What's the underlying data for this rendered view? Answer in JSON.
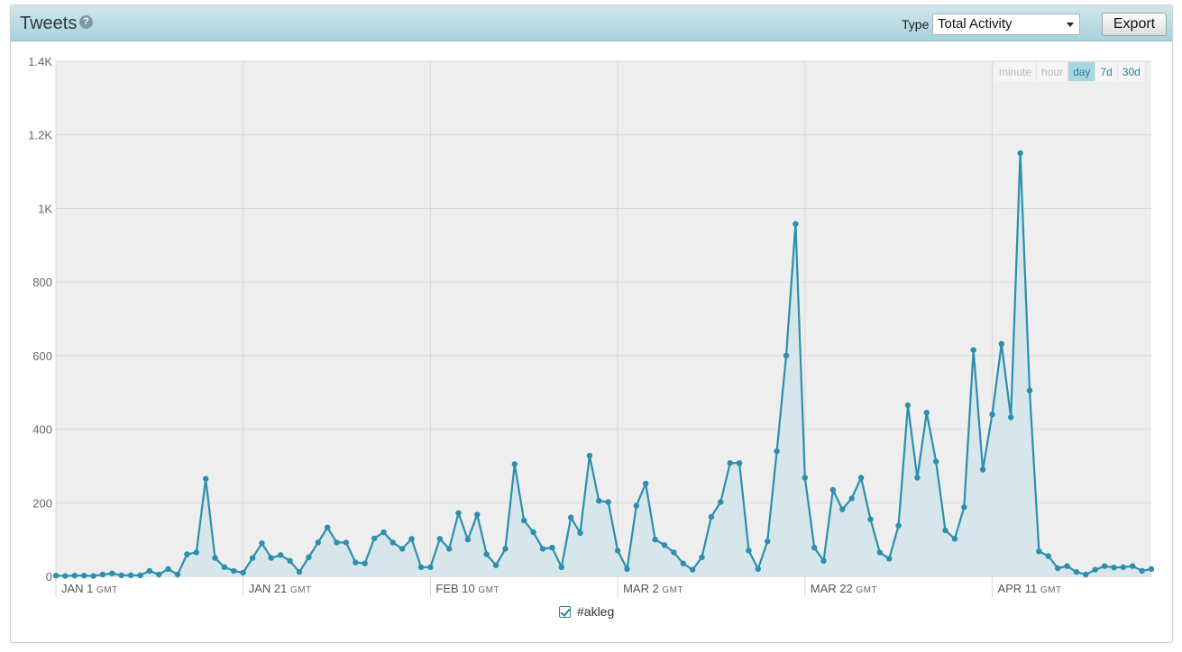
{
  "header": {
    "title": "Tweets",
    "help_icon": "help-icon",
    "type_label": "Type",
    "type_value": "Total Activity",
    "export_label": "Export"
  },
  "range_buttons": [
    {
      "label": "minute",
      "state": "disabled"
    },
    {
      "label": "hour",
      "state": "disabled"
    },
    {
      "label": "day",
      "state": "active"
    },
    {
      "label": "7d",
      "state": "enabled"
    },
    {
      "label": "30d",
      "state": "enabled"
    }
  ],
  "legend": {
    "series_name": "#akleg",
    "checked": true
  },
  "colors": {
    "line": "#2c8fae",
    "fill": "#d6e6ea",
    "plot_background": "#eeeeee",
    "grid": "#d9d9d9"
  },
  "chart_data": {
    "type": "area",
    "title": "",
    "xlabel": "",
    "ylabel": "",
    "ylim": [
      0,
      1400
    ],
    "y_ticks": [
      {
        "value": 0,
        "label": "0"
      },
      {
        "value": 200,
        "label": "200"
      },
      {
        "value": 400,
        "label": "400"
      },
      {
        "value": 600,
        "label": "600"
      },
      {
        "value": 800,
        "label": "800"
      },
      {
        "value": 1000,
        "label": "1K"
      },
      {
        "value": 1200,
        "label": "1.2K"
      },
      {
        "value": 1400,
        "label": "1.4K"
      }
    ],
    "x_ticks": [
      {
        "day_index": 0,
        "label": "JAN 1",
        "unit": "GMT"
      },
      {
        "day_index": 20,
        "label": "JAN 21",
        "unit": "GMT"
      },
      {
        "day_index": 40,
        "label": "FEB 10",
        "unit": "GMT"
      },
      {
        "day_index": 60,
        "label": "MAR 2",
        "unit": "GMT"
      },
      {
        "day_index": 80,
        "label": "MAR 22",
        "unit": "GMT"
      },
      {
        "day_index": 100,
        "label": "APR 11",
        "unit": "GMT"
      }
    ],
    "x_range": [
      0,
      117
    ],
    "grid": true,
    "series": [
      {
        "name": "#akleg",
        "values": [
          2,
          1,
          2,
          2,
          1,
          5,
          8,
          3,
          3,
          3,
          15,
          5,
          20,
          5,
          60,
          65,
          265,
          50,
          25,
          15,
          10,
          50,
          90,
          50,
          58,
          42,
          12,
          52,
          92,
          133,
          92,
          92,
          38,
          35,
          103,
          120,
          92,
          75,
          102,
          25,
          25,
          102,
          75,
          172,
          100,
          168,
          60,
          30,
          75,
          305,
          152,
          120,
          75,
          78,
          25,
          160,
          118,
          328,
          205,
          202,
          70,
          20,
          192,
          252,
          100,
          85,
          65,
          35,
          18,
          52,
          162,
          202,
          308,
          308,
          70,
          20,
          95,
          340,
          600,
          958,
          268,
          78,
          42,
          235,
          182,
          212,
          268,
          155,
          65,
          48,
          138,
          465,
          268,
          445,
          312,
          125,
          102,
          188,
          615,
          290,
          440,
          632,
          432,
          1150,
          505,
          68,
          55,
          22,
          28,
          12,
          5,
          18,
          28,
          24,
          25,
          28,
          15,
          20
        ]
      }
    ]
  }
}
